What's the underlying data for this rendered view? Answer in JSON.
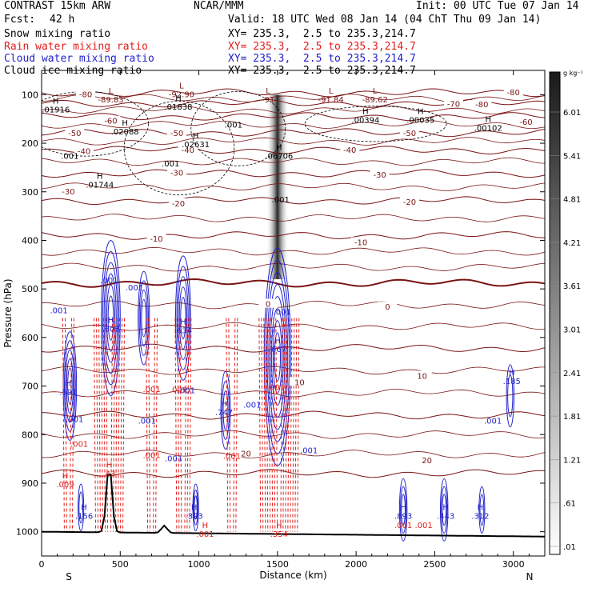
{
  "header": {
    "model": "CONTRAST 15km ARW",
    "org": "NCAR/MMM",
    "init": "Init: 00 UTC Tue 07 Jan 14",
    "fcst_label": "Fcst:",
    "fcst_value": "42 h",
    "valid": "Valid: 18 UTC Wed 08 Jan 14 (04 ChT Thu 09 Jan 14)"
  },
  "legend": [
    {
      "label": "Snow mixing ratio",
      "xy": "XY= 235.3,  2.5 to 235.3,214.7",
      "color": "#000000"
    },
    {
      "label": "Rain water mixing ratio",
      "xy": "XY= 235.3,  2.5 to 235.3,214.7",
      "color": "#e0201c"
    },
    {
      "label": "Cloud water mixing ratio",
      "xy": "XY= 235.3,  2.5 to 235.3,214.7",
      "color": "#2222cc"
    },
    {
      "label": "Cloud ice mixing ratio",
      "xy": "XY= 235.3,  2.5 to 235.3,214.7",
      "color": "#000000"
    }
  ],
  "colorbar": {
    "unit": "g kg⁻¹",
    "ticks": [
      "6.01",
      "5.41",
      "4.81",
      "4.21",
      "3.61",
      "3.01",
      "2.41",
      "1.81",
      "1.21",
      ".61",
      ".01"
    ]
  },
  "colors": {
    "temp": "#7a1414",
    "rain": "#e0201c",
    "cloud": "#2222cc",
    "ice": "#000000"
  },
  "chart_data": {
    "type": "cross-section",
    "xlabel": "Distance (km)",
    "ylabel": "Pressure (hPa)",
    "xlim": [
      0,
      3200
    ],
    "ylim": [
      1050,
      50
    ],
    "xticks": [
      0,
      500,
      1000,
      1500,
      2000,
      2500,
      3000
    ],
    "yticks": [
      100,
      200,
      300,
      400,
      500,
      600,
      700,
      800,
      900,
      1000
    ],
    "end_labels": {
      "left": "S",
      "right": "N"
    },
    "temperature_contours": [
      {
        "level": -80,
        "p": 96
      },
      {
        "level": -70,
        "p": 118
      },
      {
        "level": -60,
        "p": 145
      },
      {
        "level": -50,
        "p": 178
      },
      {
        "level": -40,
        "p": 214
      },
      {
        "level": -30,
        "p": 262
      },
      {
        "level": -20,
        "p": 318
      },
      {
        "level": -10,
        "p": 390
      },
      {
        "level": 0,
        "p": 488
      },
      {
        "level": 10,
        "p": 622
      },
      {
        "level": 20,
        "p": 760
      },
      {
        "level": 30,
        "p": 880
      }
    ],
    "temperature_labels": [
      {
        "text": "-80",
        "x": 3000,
        "p": 96
      },
      {
        "text": "-70",
        "x": 2620,
        "p": 120
      },
      {
        "text": "-60",
        "x": 3080,
        "p": 157
      },
      {
        "text": "-50",
        "x": 2340,
        "p": 180
      },
      {
        "text": "-40",
        "x": 1960,
        "p": 215
      },
      {
        "text": "-30",
        "x": 2150,
        "p": 266
      },
      {
        "text": "-20",
        "x": 2340,
        "p": 322
      },
      {
        "text": "-10",
        "x": 2030,
        "p": 405
      },
      {
        "text": "0",
        "x": 2200,
        "p": 538
      },
      {
        "text": "10",
        "x": 2420,
        "p": 680
      },
      {
        "text": "20",
        "x": 2450,
        "p": 854
      },
      {
        "text": "-20",
        "x": 870,
        "p": 325
      },
      {
        "text": "-10",
        "x": 730,
        "p": 398
      },
      {
        "text": "-50",
        "x": 860,
        "p": 180
      },
      {
        "text": "-40",
        "x": 270,
        "p": 217
      },
      {
        "text": "-30",
        "x": 170,
        "p": 300
      },
      {
        "text": "-60",
        "x": 440,
        "p": 155
      },
      {
        "text": "-80",
        "x": 280,
        "p": 100
      },
      {
        "text": "-40",
        "x": 930,
        "p": 215
      },
      {
        "text": "-30",
        "x": 860,
        "p": 262
      },
      {
        "text": "-50",
        "x": 210,
        "p": 180
      },
      {
        "text": "0",
        "x": 1440,
        "p": 532
      },
      {
        "text": "10",
        "x": 1640,
        "p": 693
      },
      {
        "text": "20",
        "x": 1300,
        "p": 840
      },
      {
        "text": "-80",
        "x": 2800,
        "p": 121
      }
    ],
    "extrema": [
      {
        "kind": "L",
        "value": "-89.83",
        "x": 440,
        "p": 98,
        "color": "#7a1414"
      },
      {
        "kind": "L",
        "value": "-92.90",
        "x": 890,
        "p": 87,
        "color": "#7a1414"
      },
      {
        "kind": "L",
        "value": "-91.84",
        "x": 1840,
        "p": 98,
        "color": "#7a1414"
      },
      {
        "kind": "L",
        "value": "-89.62",
        "x": 2120,
        "p": 98,
        "color": "#7a1414"
      },
      {
        "kind": "L",
        "value": "-91",
        "x": 1440,
        "p": 98,
        "color": "#7a1414"
      },
      {
        "kind": "H",
        "value": ".01916",
        "x": 90,
        "p": 118,
        "color": "#000000"
      },
      {
        "kind": "H",
        "value": ".01838",
        "x": 870,
        "p": 113,
        "color": "#000000"
      },
      {
        "kind": "H",
        "value": ".02088",
        "x": 530,
        "p": 164,
        "color": "#000000"
      },
      {
        "kind": "H",
        "value": ".02631",
        "x": 980,
        "p": 190,
        "color": "#000000"
      },
      {
        "kind": "H",
        "value": ".06706",
        "x": 1510,
        "p": 214,
        "color": "#000000"
      },
      {
        "kind": "H",
        "value": ".01744",
        "x": 370,
        "p": 273,
        "color": "#000000"
      },
      {
        "kind": "H",
        "value": ".00394",
        "x": 2060,
        "p": 140,
        "color": "#000000"
      },
      {
        "kind": "H",
        "value": ".00035",
        "x": 2410,
        "p": 140,
        "color": "#000000"
      },
      {
        "kind": "H",
        "value": ".00102",
        "x": 2840,
        "p": 156,
        "color": "#000000"
      },
      {
        "kind": "H",
        "value": ".602",
        "x": 440,
        "p": 570,
        "color": "#2222cc"
      },
      {
        "kind": "H",
        "value": ".634",
        "x": 900,
        "p": 573,
        "color": "#2222cc"
      },
      {
        "kind": "H",
        "value": ".667",
        "x": 1500,
        "p": 612,
        "color": "#2222cc"
      },
      {
        "kind": "H",
        "value": ".747",
        "x": 1160,
        "p": 742,
        "color": "#2222cc"
      },
      {
        "kind": "H",
        "value": ".591",
        "x": 170,
        "p": 700,
        "color": "#2222cc"
      },
      {
        "kind": "H",
        "value": ".185",
        "x": 2990,
        "p": 678,
        "color": "#2222cc"
      },
      {
        "kind": "H",
        "value": ".156",
        "x": 270,
        "p": 955,
        "color": "#2222cc"
      },
      {
        "kind": "H",
        "value": ".393",
        "x": 970,
        "p": 955,
        "color": "#2222cc"
      },
      {
        "kind": "H",
        "value": ".443",
        "x": 2570,
        "p": 955,
        "color": "#2222cc"
      },
      {
        "kind": "H",
        "value": ".312",
        "x": 2790,
        "p": 955,
        "color": "#2222cc"
      },
      {
        "kind": "H",
        "value": ".893",
        "x": 2300,
        "p": 955,
        "color": "#2222cc"
      },
      {
        "kind": "H",
        "value": ".43",
        "x": 430,
        "p": 868,
        "color": "#e0201c"
      },
      {
        "kind": "H",
        "value": ".009",
        "x": 150,
        "p": 890,
        "color": "#e0201c"
      },
      {
        "kind": "H",
        "value": ".354",
        "x": 1510,
        "p": 992,
        "color": "#e0201c"
      },
      {
        "kind": "H",
        "value": ".001",
        "x": 1040,
        "p": 992,
        "color": "#e0201c"
      }
    ],
    "cloud_labels": [
      {
        "text": ".001",
        "x": 110,
        "p": 550
      },
      {
        "text": ".001",
        "x": 590,
        "p": 503
      },
      {
        "text": ".001",
        "x": 430,
        "p": 488
      },
      {
        "text": ".001",
        "x": 1530,
        "p": 553
      },
      {
        "text": ".001",
        "x": 1340,
        "p": 744
      },
      {
        "text": ".001",
        "x": 210,
        "p": 774
      },
      {
        "text": ".001",
        "x": 670,
        "p": 777
      },
      {
        "text": ".001",
        "x": 1700,
        "p": 838
      },
      {
        "text": ".001",
        "x": 2870,
        "p": 777
      },
      {
        "text": ".001",
        "x": 840,
        "p": 855
      },
      {
        "text": ".001",
        "x": 920,
        "p": 715
      }
    ],
    "rain_labels": [
      {
        "text": ".001",
        "x": 700,
        "p": 712
      },
      {
        "text": ".001",
        "x": 870,
        "p": 713
      },
      {
        "text": ".001",
        "x": 240,
        "p": 825
      },
      {
        "text": ".001",
        "x": 700,
        "p": 848
      },
      {
        "text": ".001",
        "x": 1210,
        "p": 850
      },
      {
        "text": ".001",
        "x": 1490,
        "p": 708
      },
      {
        "text": ".001",
        "x": 2300,
        "p": 992
      },
      {
        "text": ".001",
        "x": 2430,
        "p": 992
      }
    ],
    "ice_labels": [
      {
        "text": ".001",
        "x": 180,
        "p": 232
      },
      {
        "text": ".001",
        "x": 820,
        "p": 248
      },
      {
        "text": ".001",
        "x": 1220,
        "p": 168
      },
      {
        "text": ".001",
        "x": 1520,
        "p": 322
      }
    ],
    "snow_max": {
      "x": 1500,
      "p_top": 100,
      "p_bottom": 480,
      "value_gkg": 1.5
    },
    "terrain_peaks_km": [
      430,
      780
    ]
  }
}
